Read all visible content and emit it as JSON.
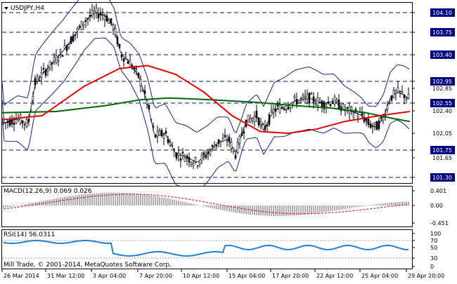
{
  "symbol": "USDJPY,H4",
  "footer_text": "Mill Trade, © 2001-2014, MetaQuotes Software Corp.",
  "colors": {
    "candle": "#000000",
    "bollinger": "#1a237e",
    "ma_fast": "#e00000",
    "ma_slow": "#006400",
    "level": "#001a66",
    "macd_hist": "#b0b0b0",
    "macd_signal": "#e00000",
    "rsi": "#1e7fd6",
    "marker": "#000080"
  },
  "main_panel": {
    "price_levels": [
      "104.10",
      "103.75",
      "103.40",
      "102.95",
      "102.55",
      "101.75",
      "101.30"
    ],
    "price_ticks": [
      "104.10",
      "103.75",
      "103.40",
      "102.95",
      "102.85",
      "102.55",
      "102.40",
      "102.05",
      "101.75",
      "101.65",
      "101.30"
    ],
    "current_price": "102.55"
  },
  "macd_panel": {
    "label": "MACD(12,26,9) 0.069 0.026",
    "ticks": [
      "0.401",
      "0.00",
      "-0.451"
    ]
  },
  "rsi_panel": {
    "label": "RSI(14) 56.0311",
    "ticks": [
      "100",
      "70",
      "50",
      "30",
      "0"
    ]
  },
  "time_axis": [
    "26 Mar 2014",
    "31 Mar 12:00",
    "3 Apr 04:00",
    "7 Apr 20:00",
    "10 Apr 12:00",
    "15 Apr 04:00",
    "17 Apr 20:00",
    "22 Apr 12:00",
    "25 Apr 04:00",
    "29 Apr 20:00"
  ]
}
